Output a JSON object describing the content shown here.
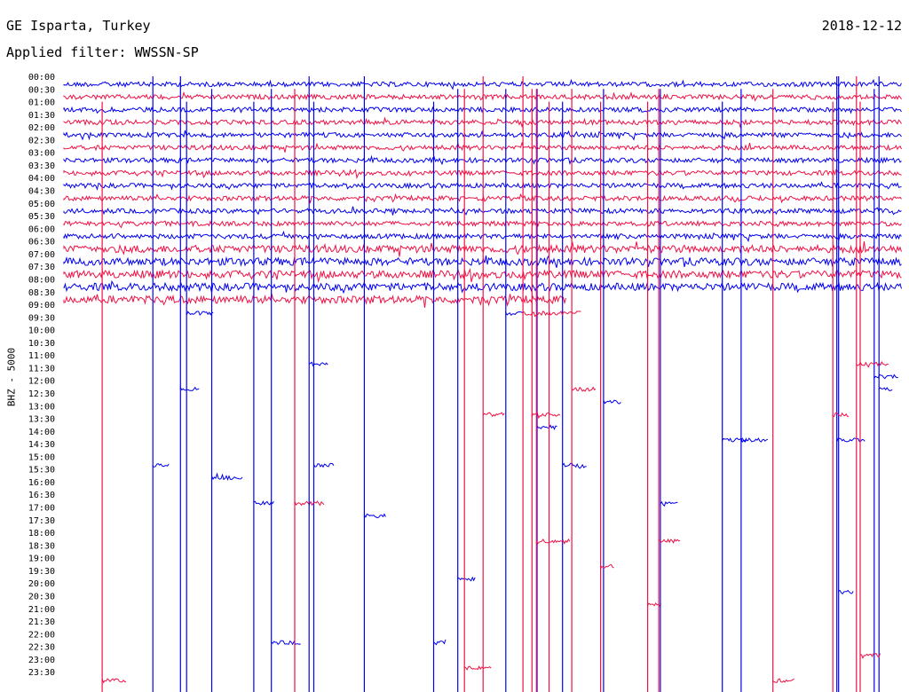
{
  "header": {
    "station": "GE Isparta, Turkey",
    "filter": "Applied filter: WWSSN-SP",
    "date": "2018-12-12",
    "channel": "BHZ - 5000"
  },
  "colors": {
    "blue": "#0000ee",
    "red": "#ee1144"
  },
  "chart_data": {
    "type": "line",
    "title": "GE Isparta, Turkey",
    "subtitle": "Applied filter: WWSSN-SP",
    "ylabel": "BHZ - 5000",
    "tick_labels": [
      "00:00",
      "00:30",
      "01:00",
      "01:30",
      "02:00",
      "02:30",
      "03:00",
      "03:30",
      "04:00",
      "04:30",
      "05:00",
      "05:30",
      "06:00",
      "06:30",
      "07:00",
      "07:30",
      "08:00",
      "08:30",
      "09:00",
      "09:30",
      "10:00",
      "10:30",
      "11:00",
      "11:30",
      "12:00",
      "12:30",
      "13:00",
      "13:30",
      "14:00",
      "14:30",
      "15:00",
      "15:30",
      "16:00",
      "16:30",
      "17:00",
      "17:30",
      "18:00",
      "18:30",
      "19:00",
      "19:30",
      "20:00",
      "20:30",
      "21:00",
      "21:30",
      "22:00",
      "22:30",
      "23:00",
      "23:30"
    ],
    "recorded_through_row": 17,
    "last_row_end_fraction": 0.6,
    "series_colors_alternate": [
      "blue",
      "red"
    ]
  }
}
